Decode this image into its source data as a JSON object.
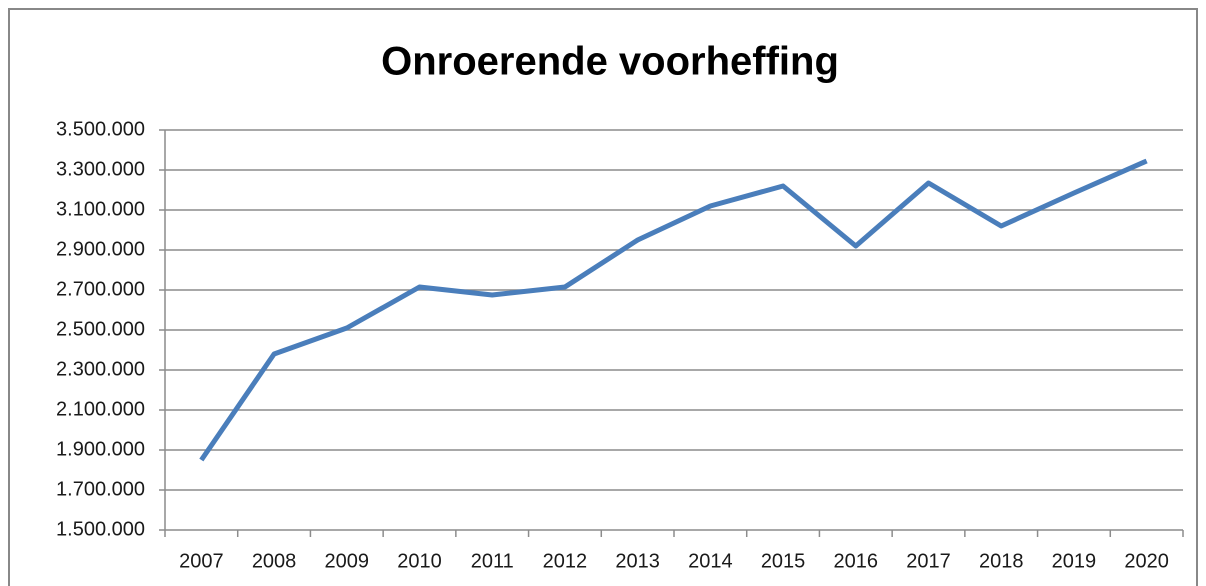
{
  "chart_data": {
    "type": "line",
    "title": "Onroerende voorheffing",
    "categories": [
      "2007",
      "2008",
      "2009",
      "2010",
      "2011",
      "2012",
      "2013",
      "2014",
      "2015",
      "2016",
      "2017",
      "2018",
      "2019",
      "2020"
    ],
    "values": [
      1850000,
      2380000,
      2510000,
      2715000,
      2675000,
      2715000,
      2950000,
      3120000,
      3220000,
      2920000,
      3235000,
      3020000,
      3185000,
      3345000
    ],
    "color": "#4a7ebb",
    "ylim": [
      1500000,
      3500000
    ],
    "yticks": [
      {
        "value": 1500000,
        "label": "1.500.000"
      },
      {
        "value": 1700000,
        "label": "1.700.000"
      },
      {
        "value": 1900000,
        "label": "1.900.000"
      },
      {
        "value": 2100000,
        "label": "2.100.000"
      },
      {
        "value": 2300000,
        "label": "2.300.000"
      },
      {
        "value": 2500000,
        "label": "2.500.000"
      },
      {
        "value": 2700000,
        "label": "2.700.000"
      },
      {
        "value": 2900000,
        "label": "2.900.000"
      },
      {
        "value": 3100000,
        "label": "3.100.000"
      },
      {
        "value": 3300000,
        "label": "3.300.000"
      },
      {
        "value": 3500000,
        "label": "3.500.000"
      }
    ],
    "grid": true
  }
}
